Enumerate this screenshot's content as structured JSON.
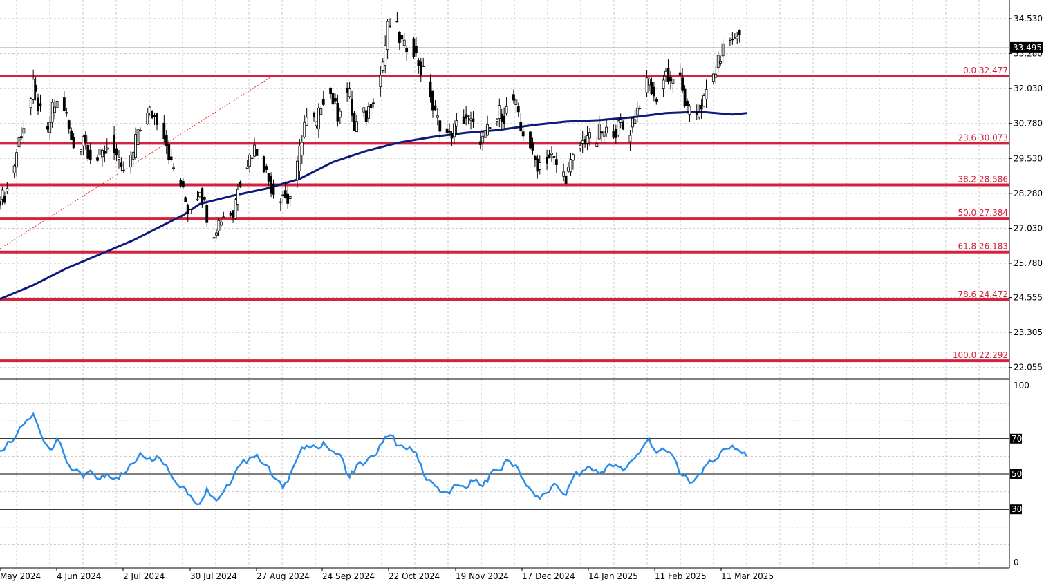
{
  "chart_data": [
    {
      "type": "candlestick",
      "title": "",
      "current_price": 33.495,
      "y_tick_labels": [
        "34.530",
        "33.280",
        "32.030",
        "30.780",
        "29.530",
        "28.280",
        "27.030",
        "25.780",
        "24.555",
        "23.305",
        "22.055"
      ],
      "ylim": [
        21.85,
        34.95
      ],
      "x_tick_labels": [
        "May 2024",
        "4 Jun 2024",
        "2 Jul 2024",
        "30 Jul 2024",
        "27 Aug 2024",
        "24 Sep 2024",
        "22 Oct 2024",
        "19 Nov 2024",
        "17 Dec 2024",
        "14 Jan 2025",
        "11 Feb 2025",
        "11 Mar 2025"
      ],
      "x_range": [
        "2024-05-07",
        "2025-03-17"
      ],
      "fibonacci_levels": [
        {
          "label": "0.0 32.477",
          "value": 32.477
        },
        {
          "label": "23.6 30.073",
          "value": 30.073
        },
        {
          "label": "38.2 28.586",
          "value": 28.586
        },
        {
          "label": "50.0 27.384",
          "value": 27.384
        },
        {
          "label": "61.8 26.183",
          "value": 26.183
        },
        {
          "label": "78.6 24.472",
          "value": 24.472
        },
        {
          "label": "100.0 22.292",
          "value": 22.292
        }
      ],
      "price_path": [
        [
          "2024-05-07",
          28.1
        ],
        [
          "2024-05-10",
          28.2
        ],
        [
          "2024-05-13",
          28.9
        ],
        [
          "2024-05-16",
          30.2
        ],
        [
          "2024-05-20",
          31.2
        ],
        [
          "2024-05-22",
          32.1
        ],
        [
          "2024-05-24",
          31.4
        ],
        [
          "2024-05-28",
          30.4
        ],
        [
          "2024-05-30",
          31.3
        ],
        [
          "2024-06-03",
          31.7
        ],
        [
          "2024-06-05",
          31.0
        ],
        [
          "2024-06-07",
          30.1
        ],
        [
          "2024-06-10",
          29.7
        ],
        [
          "2024-06-12",
          30.4
        ],
        [
          "2024-06-14",
          29.8
        ],
        [
          "2024-06-17",
          29.4
        ],
        [
          "2024-06-20",
          29.7
        ],
        [
          "2024-06-24",
          30.2
        ],
        [
          "2024-06-26",
          29.6
        ],
        [
          "2024-06-28",
          29.0
        ],
        [
          "2024-07-01",
          29.3
        ],
        [
          "2024-07-03",
          29.7
        ],
        [
          "2024-07-05",
          30.6
        ],
        [
          "2024-07-08",
          30.9
        ],
        [
          "2024-07-10",
          31.2
        ],
        [
          "2024-07-12",
          31.0
        ],
        [
          "2024-07-15",
          30.8
        ],
        [
          "2024-07-17",
          30.1
        ],
        [
          "2024-07-19",
          29.3
        ],
        [
          "2024-07-22",
          28.9
        ],
        [
          "2024-07-24",
          28.3
        ],
        [
          "2024-07-26",
          27.7
        ],
        [
          "2024-07-29",
          28.0
        ],
        [
          "2024-07-31",
          28.5
        ],
        [
          "2024-08-02",
          27.9
        ],
        [
          "2024-08-05",
          26.7
        ],
        [
          "2024-08-07",
          27.1
        ],
        [
          "2024-08-09",
          27.4
        ],
        [
          "2024-08-12",
          27.7
        ],
        [
          "2024-08-14",
          27.5
        ],
        [
          "2024-08-16",
          28.6
        ],
        [
          "2024-08-19",
          29.2
        ],
        [
          "2024-08-21",
          29.6
        ],
        [
          "2024-08-23",
          29.9
        ],
        [
          "2024-08-26",
          29.6
        ],
        [
          "2024-08-28",
          29.0
        ],
        [
          "2024-08-30",
          28.5
        ],
        [
          "2024-09-02",
          28.1
        ],
        [
          "2024-09-04",
          28.3
        ],
        [
          "2024-09-06",
          28.0
        ],
        [
          "2024-09-09",
          28.6
        ],
        [
          "2024-09-11",
          29.8
        ],
        [
          "2024-09-13",
          30.8
        ],
        [
          "2024-09-16",
          31.0
        ],
        [
          "2024-09-18",
          30.7
        ],
        [
          "2024-09-20",
          31.5
        ],
        [
          "2024-09-23",
          32.1
        ],
        [
          "2024-09-25",
          31.6
        ],
        [
          "2024-09-27",
          31.1
        ],
        [
          "2024-09-30",
          32.0
        ],
        [
          "2024-10-02",
          31.8
        ],
        [
          "2024-10-04",
          30.5
        ],
        [
          "2024-10-07",
          31.2
        ],
        [
          "2024-10-09",
          31.0
        ],
        [
          "2024-10-11",
          31.6
        ],
        [
          "2024-10-14",
          32.0
        ],
        [
          "2024-10-16",
          33.0
        ],
        [
          "2024-10-18",
          34.2
        ],
        [
          "2024-10-21",
          34.5
        ],
        [
          "2024-10-23",
          33.8
        ],
        [
          "2024-10-25",
          33.5
        ],
        [
          "2024-10-28",
          33.7
        ],
        [
          "2024-10-30",
          33.2
        ],
        [
          "2024-11-01",
          32.7
        ],
        [
          "2024-11-04",
          32.4
        ],
        [
          "2024-11-06",
          31.3
        ],
        [
          "2024-11-08",
          30.9
        ],
        [
          "2024-11-11",
          30.5
        ],
        [
          "2024-11-13",
          30.3
        ],
        [
          "2024-11-15",
          30.6
        ],
        [
          "2024-11-18",
          30.9
        ],
        [
          "2024-11-20",
          31.0
        ],
        [
          "2024-11-22",
          30.8
        ],
        [
          "2024-11-25",
          30.3
        ],
        [
          "2024-11-27",
          30.2
        ],
        [
          "2024-11-29",
          30.5
        ],
        [
          "2024-12-02",
          30.7
        ],
        [
          "2024-12-04",
          31.2
        ],
        [
          "2024-12-06",
          31.0
        ],
        [
          "2024-12-09",
          31.8
        ],
        [
          "2024-12-11",
          31.4
        ],
        [
          "2024-12-13",
          30.5
        ],
        [
          "2024-12-16",
          30.4
        ],
        [
          "2024-12-18",
          29.6
        ],
        [
          "2024-12-20",
          29.3
        ],
        [
          "2024-12-23",
          29.5
        ],
        [
          "2024-12-26",
          29.6
        ],
        [
          "2024-12-30",
          29.0
        ],
        [
          "2025-01-01",
          28.9
        ],
        [
          "2025-01-03",
          29.3
        ],
        [
          "2025-01-06",
          29.9
        ],
        [
          "2025-01-08",
          30.1
        ],
        [
          "2025-01-10",
          30.4
        ],
        [
          "2025-01-13",
          29.8
        ],
        [
          "2025-01-15",
          30.5
        ],
        [
          "2025-01-17",
          30.4
        ],
        [
          "2025-01-20",
          30.6
        ],
        [
          "2025-01-22",
          30.5
        ],
        [
          "2025-01-24",
          30.8
        ],
        [
          "2025-01-27",
          30.2
        ],
        [
          "2025-01-29",
          30.9
        ],
        [
          "2025-01-31",
          31.3
        ],
        [
          "2025-02-03",
          32.0
        ],
        [
          "2025-02-05",
          32.3
        ],
        [
          "2025-02-07",
          31.6
        ],
        [
          "2025-02-10",
          32.1
        ],
        [
          "2025-02-12",
          32.6
        ],
        [
          "2025-02-14",
          32.3
        ],
        [
          "2025-02-17",
          32.7
        ],
        [
          "2025-02-19",
          31.9
        ],
        [
          "2025-02-21",
          31.2
        ],
        [
          "2025-02-24",
          31.0
        ],
        [
          "2025-02-26",
          31.3
        ],
        [
          "2025-02-28",
          31.6
        ],
        [
          "2025-03-03",
          32.3
        ],
        [
          "2025-03-05",
          32.7
        ],
        [
          "2025-03-07",
          33.2
        ],
        [
          "2025-03-10",
          33.9
        ],
        [
          "2025-03-12",
          33.7
        ],
        [
          "2025-03-14",
          34.0
        ],
        [
          "2025-03-17",
          33.5
        ]
      ],
      "moving_average": [
        [
          "2024-05-07",
          24.5
        ],
        [
          "2024-05-21",
          25.0
        ],
        [
          "2024-06-04",
          25.6
        ],
        [
          "2024-06-18",
          26.1
        ],
        [
          "2024-07-02",
          26.6
        ],
        [
          "2024-07-16",
          27.2
        ],
        [
          "2024-07-23",
          27.5
        ],
        [
          "2024-07-30",
          27.9
        ],
        [
          "2024-08-13",
          28.2
        ],
        [
          "2024-08-27",
          28.45
        ],
        [
          "2024-09-10",
          28.8
        ],
        [
          "2024-09-24",
          29.4
        ],
        [
          "2024-10-08",
          29.8
        ],
        [
          "2024-10-22",
          30.1
        ],
        [
          "2024-11-05",
          30.3
        ],
        [
          "2024-11-19",
          30.45
        ],
        [
          "2024-12-03",
          30.55
        ],
        [
          "2024-12-17",
          30.72
        ],
        [
          "2024-12-31",
          30.85
        ],
        [
          "2025-01-14",
          30.9
        ],
        [
          "2025-01-28",
          31.0
        ],
        [
          "2025-02-11",
          31.15
        ],
        [
          "2025-02-25",
          31.2
        ],
        [
          "2025-03-11",
          31.1
        ],
        [
          "2025-03-17",
          31.15
        ]
      ],
      "trendline": {
        "from": [
          "2024-05-07",
          26.3
        ],
        "to": [
          "2024-08-30",
          32.5
        ]
      }
    },
    {
      "type": "line",
      "title": "",
      "ylim": [
        0,
        100
      ],
      "y_tick_labels": [
        "100",
        "0"
      ],
      "levels": [
        {
          "label": "70",
          "value": 70
        },
        {
          "label": "50",
          "value": 50
        },
        {
          "label": "30",
          "value": 30
        }
      ],
      "series": [
        {
          "values": [
            [
              "2024-05-07",
              63
            ],
            [
              "2024-05-12",
              68
            ],
            [
              "2024-05-17",
              78
            ],
            [
              "2024-05-21",
              84
            ],
            [
              "2024-05-24",
              73
            ],
            [
              "2024-05-28",
              64
            ],
            [
              "2024-05-31",
              70
            ],
            [
              "2024-06-04",
              57
            ],
            [
              "2024-06-07",
              52
            ],
            [
              "2024-06-11",
              48
            ],
            [
              "2024-06-14",
              52
            ],
            [
              "2024-06-18",
              47
            ],
            [
              "2024-06-21",
              50
            ],
            [
              "2024-06-25",
              48
            ],
            [
              "2024-06-28",
              50
            ],
            [
              "2024-07-02",
              56
            ],
            [
              "2024-07-05",
              62
            ],
            [
              "2024-07-09",
              59
            ],
            [
              "2024-07-12",
              60
            ],
            [
              "2024-07-16",
              55
            ],
            [
              "2024-07-19",
              47
            ],
            [
              "2024-07-23",
              43
            ],
            [
              "2024-07-26",
              38
            ],
            [
              "2024-07-30",
              33
            ],
            [
              "2024-08-02",
              42
            ],
            [
              "2024-08-06",
              35
            ],
            [
              "2024-08-09",
              40
            ],
            [
              "2024-08-13",
              48
            ],
            [
              "2024-08-16",
              55
            ],
            [
              "2024-08-20",
              59
            ],
            [
              "2024-08-23",
              61
            ],
            [
              "2024-08-27",
              55
            ],
            [
              "2024-08-30",
              48
            ],
            [
              "2024-09-03",
              42
            ],
            [
              "2024-09-06",
              50
            ],
            [
              "2024-09-10",
              62
            ],
            [
              "2024-09-13",
              66
            ],
            [
              "2024-09-17",
              65
            ],
            [
              "2024-09-20",
              68
            ],
            [
              "2024-09-24",
              63
            ],
            [
              "2024-09-27",
              61
            ],
            [
              "2024-10-01",
              48
            ],
            [
              "2024-10-04",
              55
            ],
            [
              "2024-10-08",
              57
            ],
            [
              "2024-10-11",
              60
            ],
            [
              "2024-10-15",
              68
            ],
            [
              "2024-10-18",
              72
            ],
            [
              "2024-10-22",
              66
            ],
            [
              "2024-10-25",
              64
            ],
            [
              "2024-10-29",
              62
            ],
            [
              "2024-11-01",
              50
            ],
            [
              "2024-11-05",
              45
            ],
            [
              "2024-11-08",
              40
            ],
            [
              "2024-11-12",
              39
            ],
            [
              "2024-11-15",
              44
            ],
            [
              "2024-11-19",
              42
            ],
            [
              "2024-11-22",
              46
            ],
            [
              "2024-11-26",
              43
            ],
            [
              "2024-11-29",
              50
            ],
            [
              "2024-12-03",
              52
            ],
            [
              "2024-12-06",
              58
            ],
            [
              "2024-12-10",
              55
            ],
            [
              "2024-12-13",
              47
            ],
            [
              "2024-12-17",
              40
            ],
            [
              "2024-12-20",
              36
            ],
            [
              "2024-12-24",
              40
            ],
            [
              "2024-12-27",
              44
            ],
            [
              "2024-12-31",
              38
            ],
            [
              "2025-01-03",
              48
            ],
            [
              "2025-01-07",
              52
            ],
            [
              "2025-01-10",
              54
            ],
            [
              "2025-01-14",
              50
            ],
            [
              "2025-01-17",
              54
            ],
            [
              "2025-01-21",
              55
            ],
            [
              "2025-01-24",
              52
            ],
            [
              "2025-01-28",
              58
            ],
            [
              "2025-01-31",
              62
            ],
            [
              "2025-02-04",
              70
            ],
            [
              "2025-02-07",
              62
            ],
            [
              "2025-02-11",
              63
            ],
            [
              "2025-02-14",
              60
            ],
            [
              "2025-02-18",
              49
            ],
            [
              "2025-02-21",
              45
            ],
            [
              "2025-02-25",
              50
            ],
            [
              "2025-02-28",
              55
            ],
            [
              "2025-03-04",
              58
            ],
            [
              "2025-03-07",
              64
            ],
            [
              "2025-03-11",
              66
            ],
            [
              "2025-03-14",
              63
            ],
            [
              "2025-03-17",
              60
            ]
          ]
        }
      ]
    }
  ]
}
